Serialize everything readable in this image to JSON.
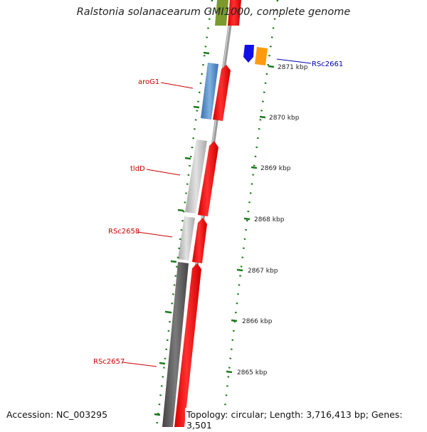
{
  "title": "Ralstonia solanacearum GMI1000, complete genome",
  "footer": {
    "accession": "Accession: NC_003295",
    "summary": "Topology: circular; Length: 3,716,413 bp; Genes: 3,501"
  },
  "colors": {
    "forward_cds": "#ff0000",
    "reverse_cds_light": "#c8c8c8",
    "reverse_cds_dark": "#5f5f5f",
    "aroG1": "#4f86c0",
    "olive_cds": "#7a9a2e",
    "blue_cds": "#1010e6",
    "orange_cds": "#ff9a10",
    "tick_marks": "#1c7a1c",
    "gene_label": "#cc0000",
    "highlight_label": "#0000aa",
    "backbone": "#909090"
  },
  "tick_labels": [
    {
      "id": "t2871",
      "label": "2871 kbp"
    },
    {
      "id": "t2870",
      "label": "2870 kbp"
    },
    {
      "id": "t2869",
      "label": "2869 kbp"
    },
    {
      "id": "t2868",
      "label": "2868 kbp"
    },
    {
      "id": "t2867",
      "label": "2867 kbp"
    },
    {
      "id": "t2866",
      "label": "2866 kbp"
    },
    {
      "id": "t2865",
      "label": "2865 kbp"
    }
  ],
  "gene_labels": [
    {
      "id": "aroG1",
      "label": "aroG1"
    },
    {
      "id": "tldD",
      "label": "tldD"
    },
    {
      "id": "RSc2658",
      "label": "RSc2658"
    },
    {
      "id": "RSc2657",
      "label": "RSc2657"
    },
    {
      "id": "RSc2661",
      "label": "RSc2661"
    }
  ]
}
